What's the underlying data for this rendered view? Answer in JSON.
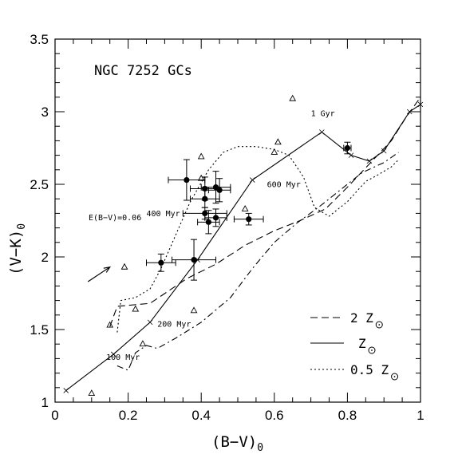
{
  "chart_data": {
    "type": "scatter",
    "title": "NGC 7252 GCs",
    "xlabel": "(B−V)",
    "xlabel_sub": "0",
    "ylabel": "(V−K)",
    "ylabel_sub": "0",
    "xlim": [
      0,
      1
    ],
    "ylim": [
      1,
      3.5
    ],
    "xticks": [
      "0",
      "0.2",
      "0.4",
      "0.6",
      "0.8",
      "1"
    ],
    "yticks": [
      "1",
      "1.5",
      "2",
      "2.5",
      "3",
      "3.5"
    ],
    "reddening_label": "E(B−V)=0.06",
    "reddening_vector": {
      "from": [
        0.09,
        1.83
      ],
      "to": [
        0.15,
        1.93
      ]
    },
    "series": [
      {
        "name": "Z",
        "legend_text": "Z",
        "legend_sun": true,
        "style": "solid",
        "x": [
          0.03,
          0.16,
          0.26,
          0.39,
          0.54,
          0.73,
          0.81,
          0.86,
          0.9,
          0.97,
          1.0
        ],
        "y": [
          1.08,
          1.33,
          1.55,
          1.98,
          2.53,
          2.86,
          2.7,
          2.66,
          2.73,
          3.0,
          3.05
        ]
      },
      {
        "name": "2 Z",
        "legend_text": "2 Z",
        "legend_sun": true,
        "style": "dashed",
        "x": [
          0.15,
          0.17,
          0.26,
          0.36,
          0.44,
          0.52,
          0.6,
          0.67,
          0.74,
          0.8,
          0.86,
          0.92,
          0.96,
          1.0
        ],
        "y": [
          1.52,
          1.66,
          1.68,
          1.85,
          1.95,
          2.08,
          2.18,
          2.25,
          2.33,
          2.48,
          2.64,
          2.8,
          2.96,
          3.1
        ]
      },
      {
        "name": "0.5 Z",
        "legend_text": "0.5 Z",
        "legend_sun": true,
        "style": "dotted",
        "x": [
          0.17,
          0.18,
          0.22,
          0.26,
          0.29,
          0.33,
          0.37,
          0.42,
          0.46,
          0.5,
          0.55,
          0.6,
          0.64,
          0.68,
          0.71,
          0.75,
          0.8,
          0.85,
          0.88,
          0.92,
          0.94
        ],
        "y": [
          1.48,
          1.7,
          1.72,
          1.78,
          1.92,
          2.15,
          2.38,
          2.6,
          2.72,
          2.76,
          2.76,
          2.74,
          2.7,
          2.55,
          2.34,
          2.28,
          2.38,
          2.52,
          2.56,
          2.62,
          2.67
        ]
      },
      {
        "name": "dash-dot track",
        "style": "dashdot",
        "x": [
          0.17,
          0.2,
          0.22,
          0.25,
          0.28,
          0.33,
          0.4,
          0.48,
          0.54,
          0.6,
          0.66,
          0.72,
          0.78,
          0.84,
          0.9,
          0.94
        ],
        "y": [
          1.25,
          1.22,
          1.34,
          1.39,
          1.37,
          1.44,
          1.55,
          1.72,
          1.92,
          2.1,
          2.23,
          2.34,
          2.46,
          2.58,
          2.65,
          2.72
        ]
      }
    ],
    "age_labels": [
      {
        "text": "100 Myr",
        "x": 0.14,
        "y": 1.29
      },
      {
        "text": "200 Myr",
        "x": 0.28,
        "y": 1.52
      },
      {
        "text": "400 Myr",
        "x": 0.25,
        "y": 2.28
      },
      {
        "text": "600 Myr",
        "x": 0.58,
        "y": 2.48
      },
      {
        "text": "1 Gyr",
        "x": 0.7,
        "y": 2.97
      }
    ],
    "points_with_errors": [
      {
        "x": 0.29,
        "y": 1.96,
        "xerr": 0.04,
        "yerr": 0.06
      },
      {
        "x": 0.38,
        "y": 1.98,
        "xerr": 0.06,
        "yerr": 0.14
      },
      {
        "x": 0.36,
        "y": 2.53,
        "xerr": 0.05,
        "yerr": 0.14
      },
      {
        "x": 0.41,
        "y": 2.47,
        "xerr": 0.04,
        "yerr": 0.08
      },
      {
        "x": 0.41,
        "y": 2.4,
        "xerr": 0.04,
        "yerr": 0.06
      },
      {
        "x": 0.41,
        "y": 2.3,
        "xerr": 0.06,
        "yerr": 0.04
      },
      {
        "x": 0.42,
        "y": 2.24,
        "xerr": 0.03,
        "yerr": 0.08
      },
      {
        "x": 0.44,
        "y": 2.48,
        "xerr": 0.04,
        "yerr": 0.11
      },
      {
        "x": 0.45,
        "y": 2.46,
        "xerr": 0.03,
        "yerr": 0.08
      },
      {
        "x": 0.44,
        "y": 2.27,
        "xerr": 0.03,
        "yerr": 0.06
      },
      {
        "x": 0.53,
        "y": 2.26,
        "xerr": 0.04,
        "yerr": 0.04
      },
      {
        "x": 0.8,
        "y": 2.75,
        "xerr": 0.01,
        "yerr": 0.04
      }
    ],
    "triangle_points": [
      {
        "x": 0.1,
        "y": 1.06
      },
      {
        "x": 0.15,
        "y": 1.53
      },
      {
        "x": 0.19,
        "y": 1.93
      },
      {
        "x": 0.22,
        "y": 1.64
      },
      {
        "x": 0.24,
        "y": 1.4
      },
      {
        "x": 0.38,
        "y": 1.63
      },
      {
        "x": 0.4,
        "y": 2.54
      },
      {
        "x": 0.4,
        "y": 2.69
      },
      {
        "x": 0.52,
        "y": 2.33
      },
      {
        "x": 0.6,
        "y": 2.72
      },
      {
        "x": 0.61,
        "y": 2.79
      },
      {
        "x": 0.65,
        "y": 3.09
      }
    ]
  }
}
